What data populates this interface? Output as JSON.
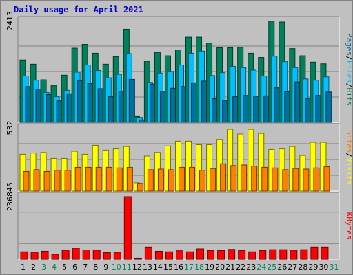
{
  "chart_data": {
    "type": "bar",
    "title": "Daily usage for April 2021",
    "categories": [
      "1",
      "2",
      "3",
      "4",
      "5",
      "6",
      "7",
      "8",
      "9",
      "10",
      "11",
      "12",
      "13",
      "14",
      "15",
      "16",
      "17",
      "18",
      "19",
      "20",
      "21",
      "22",
      "23",
      "24",
      "25",
      "26",
      "27",
      "28",
      "29",
      "30",
      "31"
    ],
    "weekend_days": [
      "3",
      "4",
      "10",
      "11",
      "17",
      "18",
      "24",
      "25",
      "31"
    ],
    "panels": [
      {
        "name": "hits-files-pages",
        "ylim": [
          0,
          2413
        ],
        "tick_label": "2413",
        "legend": [
          "Pages",
          "Files",
          "Hits"
        ],
        "series": [
          {
            "name": "Hits",
            "color": "#00805c",
            "values": [
              1480,
              1380,
              1010,
              870,
              1120,
              1760,
              1850,
              1640,
              1380,
              1560,
              2210,
              140,
              1450,
              1660,
              1580,
              1720,
              2020,
              2020,
              1880,
              1770,
              1770,
              1780,
              1640,
              1540,
              2400,
              2380,
              1750,
              1580,
              1430,
              1390,
              0
            ]
          },
          {
            "name": "Files",
            "color": "#00c0ff",
            "values": [
              1100,
              1000,
              710,
              610,
              760,
              1190,
              1360,
              1230,
              1060,
              1140,
              1630,
              120,
              950,
              1170,
              1210,
              1360,
              1640,
              1690,
              1110,
              1180,
              1330,
              1300,
              1240,
              1100,
              1570,
              1440,
              1300,
              1030,
              1000,
              1080,
              0
            ]
          },
          {
            "name": "Pages",
            "color": "#00709c",
            "values": [
              850,
              790,
              660,
              510,
              680,
              990,
              920,
              800,
              610,
              740,
              1020,
              60,
              910,
              740,
              810,
              850,
              940,
              980,
              560,
              520,
              610,
              640,
              620,
              630,
              820,
              730,
              960,
              560,
              640,
              720,
              0
            ]
          }
        ]
      },
      {
        "name": "visits-sites",
        "ylim": [
          0,
          532
        ],
        "tick_label": "532",
        "legend": [
          "Sites",
          "Visits"
        ],
        "series": [
          {
            "name": "Visits",
            "color": "#ffff00",
            "values": [
              310,
              320,
              325,
              275,
              275,
              335,
              310,
              385,
              345,
              355,
              375,
              70,
              295,
              325,
              380,
              420,
              420,
              390,
              390,
              435,
              520,
              480,
              520,
              485,
              350,
              355,
              375,
              300,
              410,
              410,
              0
            ]
          },
          {
            "name": "Sites",
            "color": "#ff8000",
            "values": [
              165,
              180,
              165,
              175,
              175,
              200,
              200,
              200,
              200,
              195,
              200,
              65,
              180,
              185,
              180,
              200,
              200,
              175,
              190,
              230,
              215,
              220,
              210,
              200,
              195,
              180,
              190,
              185,
              195,
              205,
              0
            ]
          }
        ]
      },
      {
        "name": "kbytes",
        "ylim": [
          0,
          236845
        ],
        "tick_label": "236845",
        "legend": [
          "KBytes"
        ],
        "series": [
          {
            "name": "KBytes",
            "color": "#ff0000",
            "values": [
              28000,
              26000,
              30000,
              18000,
              34000,
              42000,
              35000,
              34000,
              25000,
              26000,
              236845,
              4000,
              46000,
              30000,
              28000,
              32000,
              28000,
              39000,
              33000,
              33000,
              37000,
              33000,
              28000,
              33000,
              36000,
              36000,
              34000,
              36000,
              46000,
              46000,
              0
            ]
          }
        ]
      }
    ]
  }
}
